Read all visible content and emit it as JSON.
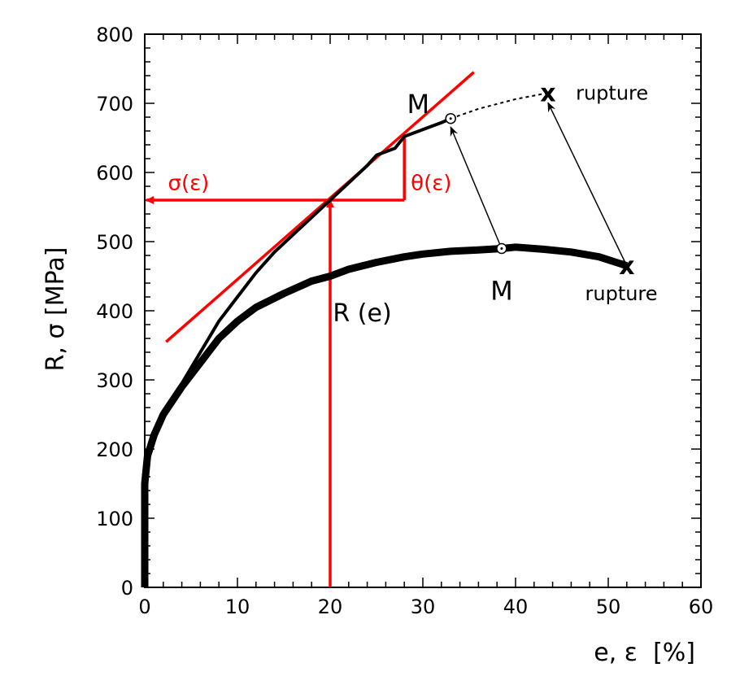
{
  "chart_data": {
    "type": "line",
    "xlabel": "e, ε  [%]",
    "ylabel": "R, σ [MPa]",
    "xlim": [
      0,
      60
    ],
    "ylim": [
      0,
      800
    ],
    "xticks": [
      0,
      10,
      20,
      30,
      40,
      50,
      60
    ],
    "yticks": [
      0,
      100,
      200,
      300,
      400,
      500,
      600,
      700,
      800
    ],
    "grid": false,
    "colors": {
      "data": "#000000",
      "construction": "#ff0000"
    },
    "series": [
      {
        "name": "R (e)",
        "style": "thick",
        "points": [
          [
            0,
            0
          ],
          [
            0,
            35
          ],
          [
            0,
            75
          ],
          [
            0,
            110
          ],
          [
            0,
            150
          ],
          [
            0.3,
            190
          ],
          [
            1,
            220
          ],
          [
            2,
            250
          ],
          [
            4,
            290
          ],
          [
            6,
            325
          ],
          [
            8,
            360
          ],
          [
            10,
            385
          ],
          [
            12,
            405
          ],
          [
            15,
            425
          ],
          [
            18,
            443
          ],
          [
            20,
            450
          ],
          [
            22,
            460
          ],
          [
            25,
            470
          ],
          [
            28,
            478
          ],
          [
            30,
            482
          ],
          [
            33,
            486
          ],
          [
            36,
            488
          ],
          [
            38.5,
            490
          ],
          [
            40,
            492
          ],
          [
            43,
            489
          ],
          [
            46,
            485
          ],
          [
            49,
            478
          ],
          [
            52,
            465
          ]
        ]
      },
      {
        "name": "σ(ε)",
        "style": "thin",
        "points": [
          [
            0.3,
            190
          ],
          [
            1,
            220
          ],
          [
            2,
            255
          ],
          [
            4,
            295
          ],
          [
            6,
            340
          ],
          [
            8,
            385
          ],
          [
            10,
            420
          ],
          [
            12,
            455
          ],
          [
            14,
            485
          ],
          [
            16,
            510
          ],
          [
            18,
            535
          ],
          [
            20,
            560
          ],
          [
            22,
            585
          ],
          [
            24,
            610
          ],
          [
            25,
            625
          ],
          [
            26,
            630
          ],
          [
            27,
            635
          ],
          [
            28,
            652
          ],
          [
            30,
            662
          ],
          [
            32,
            672
          ],
          [
            33,
            678
          ]
        ]
      },
      {
        "style": "dashed",
        "points": [
          [
            33,
            678
          ],
          [
            36,
            692
          ],
          [
            40,
            706
          ],
          [
            43.5,
            715
          ]
        ]
      }
    ],
    "markers": [
      {
        "label": "M",
        "kind": "circle",
        "x": 33,
        "y": 678,
        "label_at": [
          29.5,
          700
        ]
      },
      {
        "label": "M",
        "kind": "circle",
        "x": 38.5,
        "y": 490,
        "label_at": [
          38.5,
          430
        ]
      },
      {
        "label": "rupture",
        "kind": "x",
        "x": 43.5,
        "y": 715,
        "label_at": [
          46.5,
          715
        ]
      },
      {
        "label": "rupture",
        "kind": "x",
        "x": 52,
        "y": 465,
        "label_at": [
          47.5,
          425
        ]
      }
    ],
    "arrows": [
      {
        "from": [
          38.5,
          490
        ],
        "to": [
          33,
          680
        ]
      },
      {
        "from": [
          52,
          465
        ],
        "to": [
          43.5,
          715
        ]
      }
    ],
    "construction": {
      "tangent": {
        "from": [
          2.3,
          355
        ],
        "to": [
          35.5,
          745
        ]
      },
      "point": [
        20,
        560
      ],
      "slope_triangle_x": 28,
      "slope_triangle_top": 655,
      "sigma_label": "σ(ε)",
      "theta_label": "θ(ε)",
      "R_label": "R (e)"
    }
  }
}
